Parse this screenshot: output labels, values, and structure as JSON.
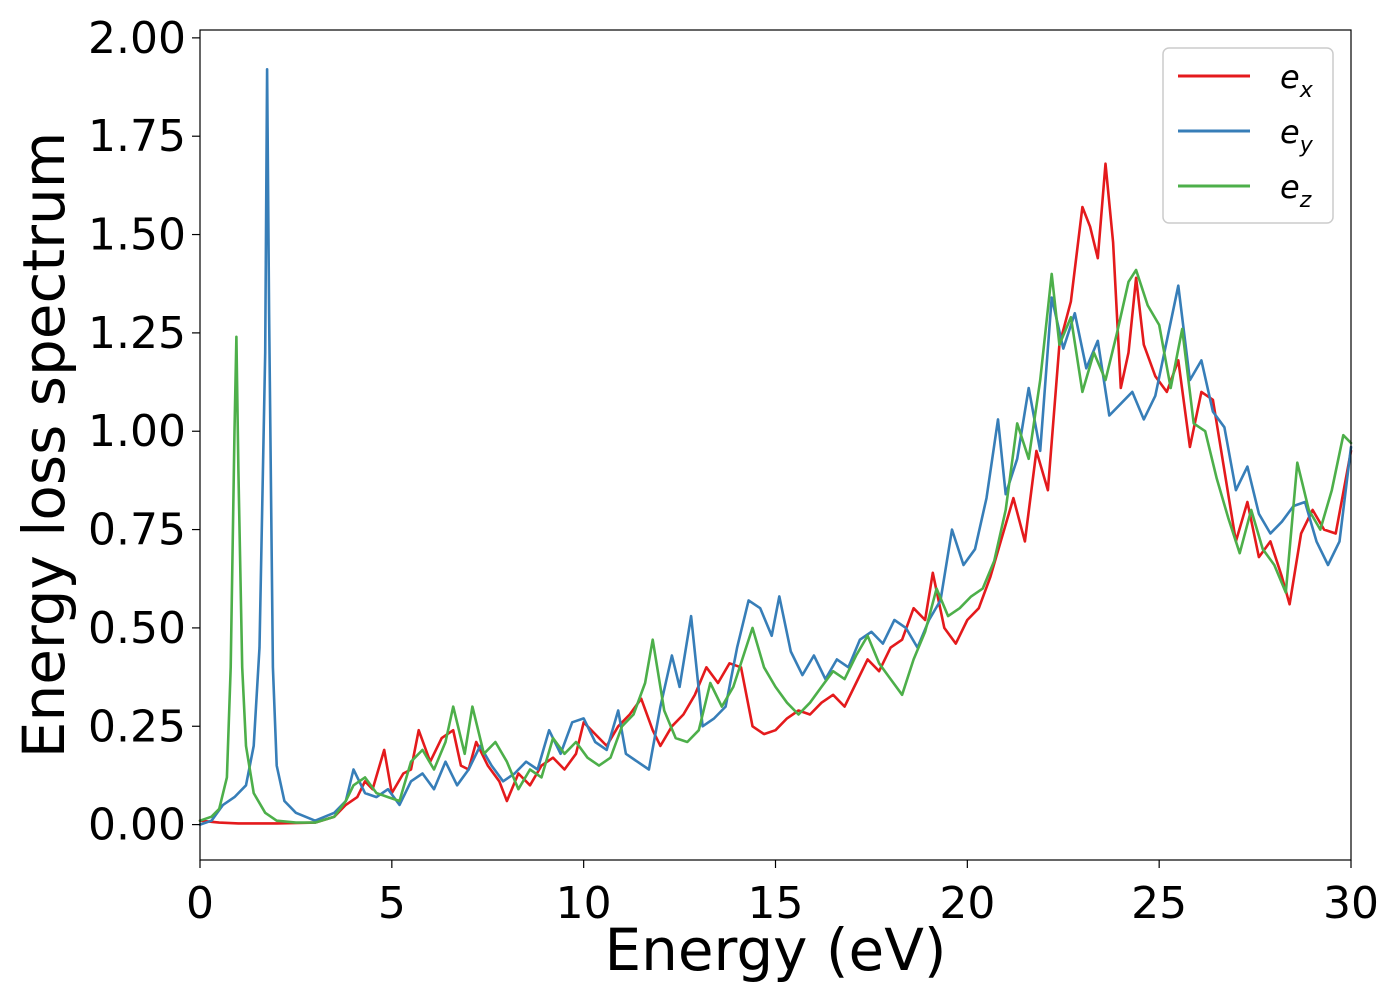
{
  "chart_data": {
    "type": "line",
    "title": "",
    "xlabel": "Energy (eV)",
    "ylabel": "Energy loss spectrum",
    "xlim": [
      0,
      30
    ],
    "ylim": [
      -0.09,
      2.02
    ],
    "xticks": [
      "0",
      "5",
      "10",
      "15",
      "20",
      "25",
      "30"
    ],
    "yticks": [
      "0.00",
      "0.25",
      "0.50",
      "0.75",
      "1.00",
      "1.25",
      "1.50",
      "1.75",
      "2.00"
    ],
    "grid": false,
    "legend_position": "top-right",
    "series": [
      {
        "name": "e",
        "subscript": "x",
        "color": "#e41a1c",
        "x": [
          0,
          0.5,
          1.0,
          2.0,
          3.0,
          3.5,
          3.8,
          4.1,
          4.3,
          4.5,
          4.8,
          5.0,
          5.3,
          5.5,
          5.7,
          6.0,
          6.3,
          6.6,
          6.8,
          7.0,
          7.2,
          7.5,
          7.8,
          8.0,
          8.3,
          8.6,
          8.9,
          9.2,
          9.5,
          9.8,
          10.0,
          10.3,
          10.6,
          10.9,
          11.2,
          11.5,
          11.8,
          12.0,
          12.3,
          12.6,
          12.9,
          13.2,
          13.5,
          13.8,
          14.1,
          14.4,
          14.7,
          15.0,
          15.3,
          15.6,
          15.9,
          16.2,
          16.5,
          16.8,
          17.1,
          17.4,
          17.7,
          18.0,
          18.3,
          18.6,
          18.9,
          19.1,
          19.4,
          19.7,
          20.0,
          20.3,
          20.6,
          20.9,
          21.2,
          21.5,
          21.8,
          22.1,
          22.4,
          22.7,
          23.0,
          23.2,
          23.4,
          23.6,
          23.8,
          24.0,
          24.2,
          24.4,
          24.6,
          24.9,
          25.2,
          25.5,
          25.8,
          26.1,
          26.4,
          26.7,
          27.0,
          27.3,
          27.6,
          27.9,
          28.2,
          28.4,
          28.7,
          29.0,
          29.3,
          29.6,
          30.0
        ],
        "y": [
          0.01,
          0.005,
          0.003,
          0.003,
          0.005,
          0.02,
          0.05,
          0.07,
          0.11,
          0.09,
          0.19,
          0.08,
          0.13,
          0.14,
          0.24,
          0.16,
          0.22,
          0.24,
          0.15,
          0.14,
          0.21,
          0.15,
          0.11,
          0.06,
          0.13,
          0.1,
          0.15,
          0.17,
          0.14,
          0.18,
          0.26,
          0.23,
          0.2,
          0.25,
          0.28,
          0.32,
          0.24,
          0.2,
          0.25,
          0.28,
          0.33,
          0.4,
          0.36,
          0.41,
          0.4,
          0.25,
          0.23,
          0.24,
          0.27,
          0.29,
          0.28,
          0.31,
          0.33,
          0.3,
          0.36,
          0.42,
          0.39,
          0.45,
          0.47,
          0.55,
          0.52,
          0.64,
          0.5,
          0.46,
          0.52,
          0.55,
          0.63,
          0.73,
          0.83,
          0.72,
          0.95,
          0.85,
          1.22,
          1.33,
          1.57,
          1.52,
          1.44,
          1.68,
          1.48,
          1.11,
          1.2,
          1.39,
          1.22,
          1.14,
          1.1,
          1.18,
          0.96,
          1.1,
          1.08,
          0.9,
          0.72,
          0.82,
          0.68,
          0.72,
          0.63,
          0.56,
          0.74,
          0.8,
          0.75,
          0.74,
          0.95
        ]
      },
      {
        "name": "e",
        "subscript": "y",
        "color": "#377eb8",
        "x": [
          0,
          0.3,
          0.6,
          0.9,
          1.2,
          1.4,
          1.55,
          1.7,
          1.75,
          1.8,
          1.9,
          2.0,
          2.2,
          2.5,
          3.0,
          3.5,
          3.8,
          4.0,
          4.3,
          4.6,
          4.9,
          5.2,
          5.5,
          5.8,
          6.1,
          6.4,
          6.7,
          7.0,
          7.3,
          7.6,
          7.9,
          8.2,
          8.5,
          8.8,
          9.1,
          9.4,
          9.7,
          10.0,
          10.3,
          10.6,
          10.9,
          11.1,
          11.4,
          11.7,
          12.0,
          12.3,
          12.5,
          12.8,
          13.1,
          13.4,
          13.7,
          14.0,
          14.3,
          14.6,
          14.9,
          15.1,
          15.4,
          15.7,
          16.0,
          16.3,
          16.6,
          16.9,
          17.2,
          17.5,
          17.8,
          18.1,
          18.4,
          18.7,
          19.0,
          19.3,
          19.6,
          19.9,
          20.2,
          20.5,
          20.8,
          21.0,
          21.3,
          21.6,
          21.9,
          22.2,
          22.5,
          22.8,
          23.1,
          23.4,
          23.7,
          24.0,
          24.3,
          24.6,
          24.9,
          25.2,
          25.5,
          25.8,
          26.1,
          26.4,
          26.7,
          27.0,
          27.3,
          27.6,
          27.9,
          28.2,
          28.5,
          28.8,
          29.1,
          29.4,
          29.7,
          30.0
        ],
        "y": [
          0.0,
          0.01,
          0.05,
          0.07,
          0.1,
          0.2,
          0.45,
          1.2,
          1.92,
          1.3,
          0.4,
          0.15,
          0.06,
          0.03,
          0.01,
          0.03,
          0.06,
          0.14,
          0.08,
          0.07,
          0.09,
          0.05,
          0.11,
          0.13,
          0.09,
          0.16,
          0.1,
          0.14,
          0.2,
          0.15,
          0.11,
          0.13,
          0.16,
          0.14,
          0.24,
          0.18,
          0.26,
          0.27,
          0.21,
          0.19,
          0.29,
          0.18,
          0.16,
          0.14,
          0.3,
          0.43,
          0.35,
          0.53,
          0.25,
          0.27,
          0.3,
          0.45,
          0.57,
          0.55,
          0.48,
          0.58,
          0.44,
          0.38,
          0.43,
          0.37,
          0.42,
          0.4,
          0.47,
          0.49,
          0.46,
          0.52,
          0.5,
          0.45,
          0.52,
          0.57,
          0.75,
          0.66,
          0.7,
          0.83,
          1.03,
          0.84,
          0.93,
          1.11,
          0.95,
          1.34,
          1.21,
          1.3,
          1.16,
          1.23,
          1.04,
          1.07,
          1.1,
          1.03,
          1.09,
          1.23,
          1.37,
          1.13,
          1.18,
          1.05,
          1.01,
          0.85,
          0.91,
          0.79,
          0.74,
          0.77,
          0.81,
          0.82,
          0.72,
          0.66,
          0.72,
          0.96
        ]
      },
      {
        "name": "e",
        "subscript": "z",
        "color": "#4daf4a",
        "x": [
          0,
          0.3,
          0.5,
          0.7,
          0.8,
          0.9,
          0.95,
          1.0,
          1.1,
          1.2,
          1.4,
          1.7,
          2.0,
          2.5,
          3.0,
          3.5,
          3.8,
          4.0,
          4.3,
          4.6,
          4.9,
          5.2,
          5.5,
          5.8,
          6.1,
          6.4,
          6.6,
          6.9,
          7.1,
          7.4,
          7.7,
          8.0,
          8.3,
          8.6,
          8.9,
          9.2,
          9.5,
          9.8,
          10.1,
          10.4,
          10.7,
          11.0,
          11.3,
          11.6,
          11.8,
          12.1,
          12.4,
          12.7,
          13.0,
          13.3,
          13.6,
          13.9,
          14.2,
          14.4,
          14.7,
          15.0,
          15.3,
          15.6,
          15.9,
          16.2,
          16.5,
          16.8,
          17.1,
          17.4,
          17.7,
          18.0,
          18.3,
          18.6,
          18.9,
          19.2,
          19.5,
          19.8,
          20.1,
          20.4,
          20.7,
          21.0,
          21.3,
          21.6,
          21.9,
          22.2,
          22.4,
          22.7,
          23.0,
          23.3,
          23.6,
          23.9,
          24.2,
          24.4,
          24.7,
          25.0,
          25.3,
          25.6,
          25.9,
          26.2,
          26.5,
          26.8,
          27.1,
          27.4,
          27.7,
          28.0,
          28.3,
          28.6,
          28.9,
          29.2,
          29.5,
          29.8,
          30.0
        ],
        "y": [
          0.01,
          0.02,
          0.04,
          0.12,
          0.4,
          1.0,
          1.24,
          0.9,
          0.4,
          0.2,
          0.08,
          0.03,
          0.01,
          0.005,
          0.005,
          0.02,
          0.06,
          0.1,
          0.12,
          0.08,
          0.07,
          0.06,
          0.16,
          0.19,
          0.14,
          0.21,
          0.3,
          0.18,
          0.3,
          0.18,
          0.21,
          0.16,
          0.09,
          0.14,
          0.12,
          0.22,
          0.18,
          0.21,
          0.17,
          0.15,
          0.17,
          0.25,
          0.28,
          0.36,
          0.47,
          0.29,
          0.22,
          0.21,
          0.24,
          0.36,
          0.3,
          0.35,
          0.44,
          0.5,
          0.4,
          0.35,
          0.31,
          0.28,
          0.31,
          0.35,
          0.39,
          0.37,
          0.43,
          0.48,
          0.41,
          0.37,
          0.33,
          0.42,
          0.49,
          0.6,
          0.53,
          0.55,
          0.58,
          0.6,
          0.67,
          0.8,
          1.02,
          0.93,
          1.13,
          1.4,
          1.22,
          1.29,
          1.1,
          1.2,
          1.13,
          1.25,
          1.38,
          1.41,
          1.32,
          1.27,
          1.11,
          1.26,
          1.02,
          1.0,
          0.88,
          0.78,
          0.69,
          0.8,
          0.7,
          0.66,
          0.59,
          0.92,
          0.8,
          0.75,
          0.85,
          0.99,
          0.97
        ]
      }
    ]
  }
}
